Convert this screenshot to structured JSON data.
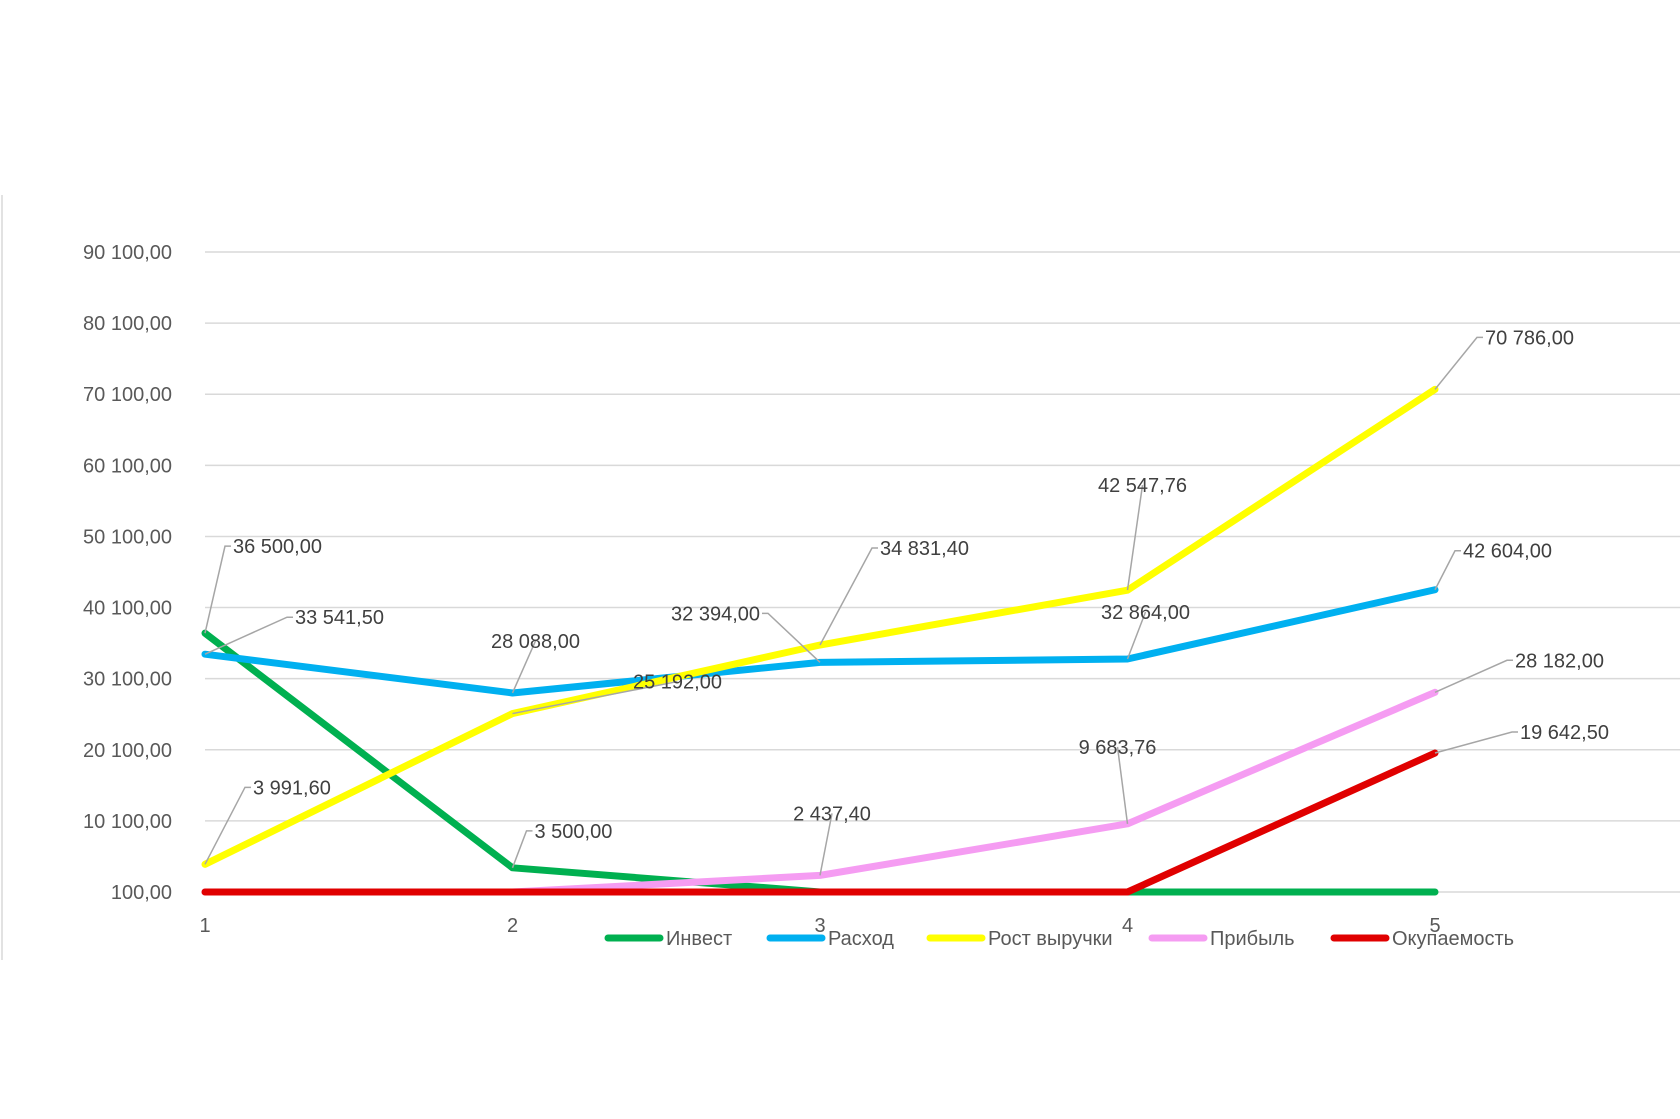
{
  "chart_data": {
    "type": "line",
    "title": "",
    "xlabel": "",
    "ylabel": "",
    "categories": [
      "1",
      "2",
      "3",
      "4",
      "5"
    ],
    "ylim": [
      100,
      90100
    ],
    "y_ticks": [
      {
        "value": 100,
        "label": "100,00"
      },
      {
        "value": 10100,
        "label": "10 100,00"
      },
      {
        "value": 20100,
        "label": "20 100,00"
      },
      {
        "value": 30100,
        "label": "30 100,00"
      },
      {
        "value": 40100,
        "label": "40 100,00"
      },
      {
        "value": 50100,
        "label": "50 100,00"
      },
      {
        "value": 60100,
        "label": "60 100,00"
      },
      {
        "value": 70100,
        "label": "70 100,00"
      },
      {
        "value": 80100,
        "label": "80 100,00"
      },
      {
        "value": 90100,
        "label": "90 100,00"
      }
    ],
    "grid": true,
    "legend_position": "bottom",
    "series": [
      {
        "name": "Инвест",
        "color": "#00b050",
        "values": [
          36500,
          3500,
          100,
          100,
          100
        ],
        "labels": [
          "36 500,00",
          "3 500,00",
          "",
          "",
          ""
        ]
      },
      {
        "name": "Расход",
        "color": "#00b0f0",
        "values": [
          33541.5,
          28088,
          32394,
          32864,
          42604
        ],
        "labels": [
          "33 541,50",
          "28 088,00",
          "32 394,00",
          "32 864,00",
          "42 604,00"
        ]
      },
      {
        "name": "Рост выручки",
        "color": "#ffff00",
        "values": [
          3991.6,
          25192,
          34831.4,
          42547.76,
          70786
        ],
        "labels": [
          "3 991,60",
          "25 192,00",
          "34 831,40",
          "42 547,76",
          "70 786,00"
        ]
      },
      {
        "name": "Прибыль",
        "color": "#f59cf2",
        "values": [
          100,
          100,
          2437.4,
          9683.76,
          28182
        ],
        "labels": [
          "",
          "",
          "2 437,40",
          "9 683,76",
          "28 182,00"
        ]
      },
      {
        "name": "Окупаемость",
        "color": "#e00000",
        "values": [
          100,
          100,
          100,
          100,
          19642.5
        ],
        "labels": [
          "",
          "",
          "",
          "",
          "19 642,50"
        ]
      }
    ]
  }
}
